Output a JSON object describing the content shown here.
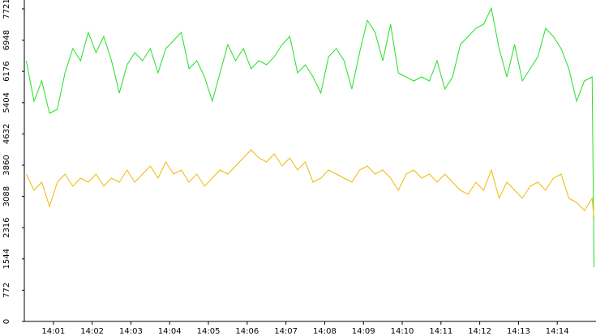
{
  "chart_data": {
    "type": "line",
    "x": [
      0.3,
      0.5,
      0.7,
      0.9,
      1.1,
      1.3,
      1.5,
      1.7,
      1.9,
      2.1,
      2.3,
      2.5,
      2.7,
      2.9,
      3.1,
      3.3,
      3.5,
      3.7,
      3.9,
      4.1,
      4.3,
      4.5,
      4.7,
      4.9,
      5.1,
      5.3,
      5.5,
      5.7,
      5.9,
      6.1,
      6.3,
      6.5,
      6.7,
      6.9,
      7.1,
      7.3,
      7.5,
      7.7,
      7.9,
      8.1,
      8.3,
      8.5,
      8.7,
      8.9,
      9.1,
      9.3,
      9.5,
      9.7,
      9.9,
      10.1,
      10.3,
      10.5,
      10.7,
      10.9,
      11.1,
      11.3,
      11.5,
      11.7,
      11.9,
      12.1,
      12.3,
      12.5,
      12.7,
      12.9,
      13.1,
      13.3,
      13.5,
      13.7,
      13.9,
      14.1,
      14.3,
      14.5,
      14.7,
      14.9,
      14.95
    ],
    "series": [
      {
        "color": "#22e022",
        "values": [
          6440,
          5440,
          5940,
          5140,
          5240,
          6140,
          6740,
          6440,
          7140,
          6640,
          7040,
          6440,
          5640,
          6340,
          6640,
          6440,
          6740,
          6140,
          6740,
          6940,
          7140,
          6240,
          6440,
          6040,
          5440,
          6140,
          6840,
          6440,
          6740,
          6240,
          6440,
          6340,
          6540,
          6840,
          7040,
          6140,
          6340,
          6040,
          5640,
          6540,
          6740,
          6440,
          5740,
          6640,
          7440,
          7140,
          6440,
          7340,
          6140,
          6040,
          5940,
          6040,
          5940,
          6440,
          5740,
          6040,
          6840,
          7040,
          7240,
          7340,
          7740,
          6740,
          6040,
          6840,
          5940,
          6240,
          6540,
          7240,
          7040,
          6740,
          6240,
          5440,
          5940,
          6040,
          1340
        ]
      },
      {
        "color": "#f0b800",
        "values": [
          3640,
          3240,
          3440,
          2840,
          3440,
          3640,
          3340,
          3540,
          3440,
          3640,
          3340,
          3540,
          3440,
          3740,
          3440,
          3640,
          3840,
          3540,
          3940,
          3640,
          3740,
          3440,
          3640,
          3340,
          3540,
          3740,
          3640,
          3840,
          4040,
          4240,
          4040,
          3940,
          4140,
          3840,
          4040,
          3740,
          3940,
          3440,
          3540,
          3740,
          3640,
          3540,
          3440,
          3740,
          3840,
          3640,
          3740,
          3540,
          3240,
          3640,
          3740,
          3540,
          3640,
          3440,
          3640,
          3440,
          3240,
          3140,
          3440,
          3240,
          3740,
          3040,
          3440,
          3240,
          3040,
          3340,
          3440,
          3240,
          3540,
          3640,
          3040,
          2940,
          2740,
          3040,
          2540
        ]
      }
    ],
    "xlim": [
      0.25,
      15.0
    ],
    "xticks": [
      {
        "value": 1,
        "label": "14:01"
      },
      {
        "value": 2,
        "label": "14:02"
      },
      {
        "value": 3,
        "label": "14:03"
      },
      {
        "value": 4,
        "label": "14:04"
      },
      {
        "value": 5,
        "label": "14:05"
      },
      {
        "value": 6,
        "label": "14:06"
      },
      {
        "value": 7,
        "label": "14:07"
      },
      {
        "value": 8,
        "label": "14:08"
      },
      {
        "value": 9,
        "label": "14:09"
      },
      {
        "value": 10,
        "label": "14:10"
      },
      {
        "value": 11,
        "label": "14:11"
      },
      {
        "value": 12,
        "label": "14:12"
      },
      {
        "value": 13,
        "label": "14:13"
      },
      {
        "value": 14,
        "label": "14:14"
      }
    ],
    "ylim": [
      0,
      7940
    ],
    "yticks": [
      0,
      772,
      1544,
      2316,
      3088,
      3860,
      4632,
      5404,
      6176,
      6948,
      7721
    ]
  }
}
